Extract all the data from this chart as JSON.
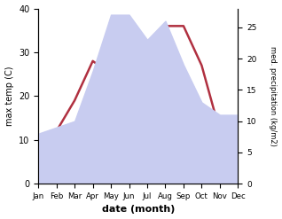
{
  "months": [
    "Jan",
    "Feb",
    "Mar",
    "Apr",
    "May",
    "Jun",
    "Jul",
    "Aug",
    "Sep",
    "Oct",
    "Nov",
    "Dec"
  ],
  "temperature": [
    5,
    12,
    19,
    28,
    25,
    33,
    29,
    36,
    36,
    27,
    12,
    12
  ],
  "precipitation": [
    8,
    9,
    10,
    18,
    27,
    27,
    23,
    26,
    19,
    13,
    11,
    11
  ],
  "temp_color": "#b03040",
  "precip_fill_color": "#c8ccf0",
  "temp_ylim": [
    0,
    40
  ],
  "precip_ylim": [
    0,
    28
  ],
  "temp_yticks": [
    0,
    10,
    20,
    30,
    40
  ],
  "precip_yticks": [
    0,
    5,
    10,
    15,
    20,
    25
  ],
  "ylabel_left": "max temp (C)",
  "ylabel_right": "med. precipitation (kg/m2)",
  "xlabel": "date (month)",
  "temp_linewidth": 1.8,
  "background_color": "#ffffff"
}
